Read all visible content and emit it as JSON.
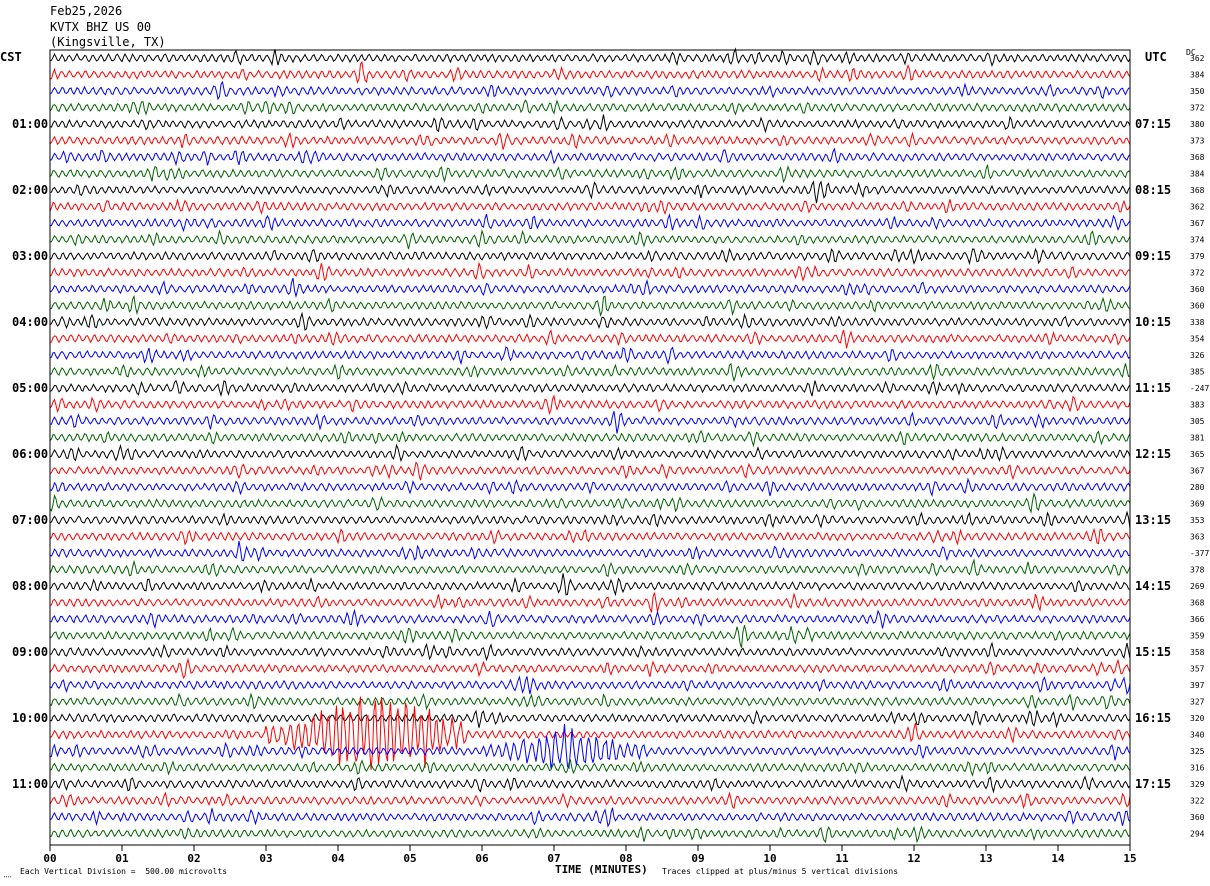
{
  "header": {
    "date": "Feb25,2026",
    "station": "KVTX BHZ US 00",
    "location": "(Kingsville, TX)"
  },
  "left_timezone": "CST",
  "right_timezone": "UTC",
  "dc_label": "DC",
  "footer": {
    "scale_note": "Each Vertical Division =  500.00 microvolts",
    "clip_note": "Traces clipped at plus/minus 5 vertical divisions"
  },
  "chart_data": {
    "type": "line",
    "title": "",
    "xlabel": "TIME (MINUTES)",
    "ylabel": "",
    "xlim": [
      0,
      15
    ],
    "x_ticks": [
      "00",
      "01",
      "02",
      "03",
      "04",
      "05",
      "06",
      "07",
      "08",
      "09",
      "10",
      "11",
      "12",
      "13",
      "14",
      "15"
    ],
    "trace_count": 48,
    "trace_colors": [
      "#000000",
      "#ff0000",
      "#0000ff",
      "#006400"
    ],
    "left_hour_labels": [
      "01:00",
      "02:00",
      "03:00",
      "04:00",
      "05:00",
      "06:00",
      "07:00",
      "08:00",
      "09:00",
      "10:00",
      "11:00"
    ],
    "right_hour_labels": [
      "07:15",
      "08:15",
      "09:15",
      "10:15",
      "11:15",
      "12:15",
      "13:15",
      "14:15",
      "15:15",
      "16:15",
      "17:15"
    ],
    "right_trace_values": [
      "362",
      "384",
      "350",
      "372",
      "380",
      "373",
      "368",
      "384",
      "368",
      "362",
      "367",
      "374",
      "379",
      "372",
      "360",
      "360",
      "338",
      "354",
      "326",
      "385",
      "-247",
      "383",
      "305",
      "381",
      "365",
      "367",
      "280",
      "369",
      "353",
      "363",
      "-377",
      "378",
      "269",
      "368",
      "366",
      "359",
      "358",
      "357",
      "397",
      "327",
      "320",
      "340",
      "325",
      "316",
      "329",
      "322",
      "360",
      "294"
    ],
    "events": [
      {
        "trace": 41,
        "start_min": 3.0,
        "end_min": 5.8,
        "peak_min": 4.5,
        "description_level": "large"
      },
      {
        "trace": 42,
        "start_min": 6.0,
        "end_min": 8.3,
        "peak_min": 7.2,
        "description_level": "medium"
      }
    ]
  }
}
